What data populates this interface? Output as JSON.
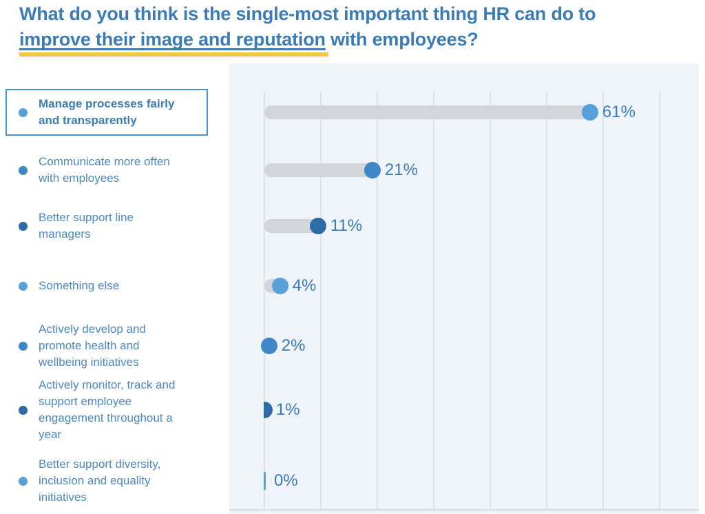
{
  "title": {
    "line1": "What do you think is the single-most important thing HR can do to",
    "underlined": "improve their image and reputation",
    "rest": " with employees?"
  },
  "rows": [
    {
      "label": "Manage processes fairly and transparently",
      "value": 61,
      "value_label": "61%",
      "shade": "light",
      "highlighted": true
    },
    {
      "label": "Communicate more often with employees",
      "value": 21,
      "value_label": "21%",
      "shade": "medium",
      "highlighted": false
    },
    {
      "label": "Better support line managers",
      "value": 11,
      "value_label": "11%",
      "shade": "dark",
      "highlighted": false
    },
    {
      "label": "Something else",
      "value": 4,
      "value_label": "4%",
      "shade": "light",
      "highlighted": false
    },
    {
      "label": "Actively develop and promote health and wellbeing initiatives",
      "value": 2,
      "value_label": "2%",
      "shade": "medium",
      "highlighted": false
    },
    {
      "label": "Actively monitor, track and support employee engagement throughout a year",
      "value": 1,
      "value_label": "1%",
      "shade": "dark",
      "highlighted": false
    },
    {
      "label": "Better support diversity, inclusion and equality initiatives",
      "value": 0,
      "value_label": "0%",
      "shade": "light",
      "highlighted": false
    }
  ],
  "chart_data": {
    "type": "bar",
    "orientation": "horizontal",
    "title": "What do you think is the single-most important thing HR can do to improve their image and reputation with employees?",
    "categories": [
      "Manage processes fairly and transparently",
      "Communicate more often with employees",
      "Better support line managers",
      "Something else",
      "Actively develop and promote health and wellbeing initiatives",
      "Actively monitor, track and support employee engagement throughout a year",
      "Better support diversity, inclusion and equality initiatives"
    ],
    "values": [
      61,
      21,
      11,
      4,
      2,
      1,
      0
    ],
    "data_labels": [
      "61%",
      "21%",
      "11%",
      "4%",
      "2%",
      "1%",
      "0%"
    ],
    "unit": "%",
    "xlim": [
      0,
      100
    ],
    "gridline_interval": 10,
    "grid": true,
    "legend_position": "none",
    "highlighted_category": "Manage processes fairly and transparently",
    "style": "lollipop (grey track with blue end dot)"
  },
  "colors": {
    "title_text": "#3b7cb5",
    "underline_yellow": "#f3c845",
    "category_text": "#4c89c1",
    "value_text": "#3a7cb8",
    "panel_background": "#eff4f9",
    "gridline": "#dde2e8",
    "track_grey": "#d2d5da",
    "highlight_box_border": "#4a90c9",
    "dot_light": "#56a1da",
    "dot_medium": "#3f86c5",
    "dot_dark": "#2c6ba8"
  }
}
